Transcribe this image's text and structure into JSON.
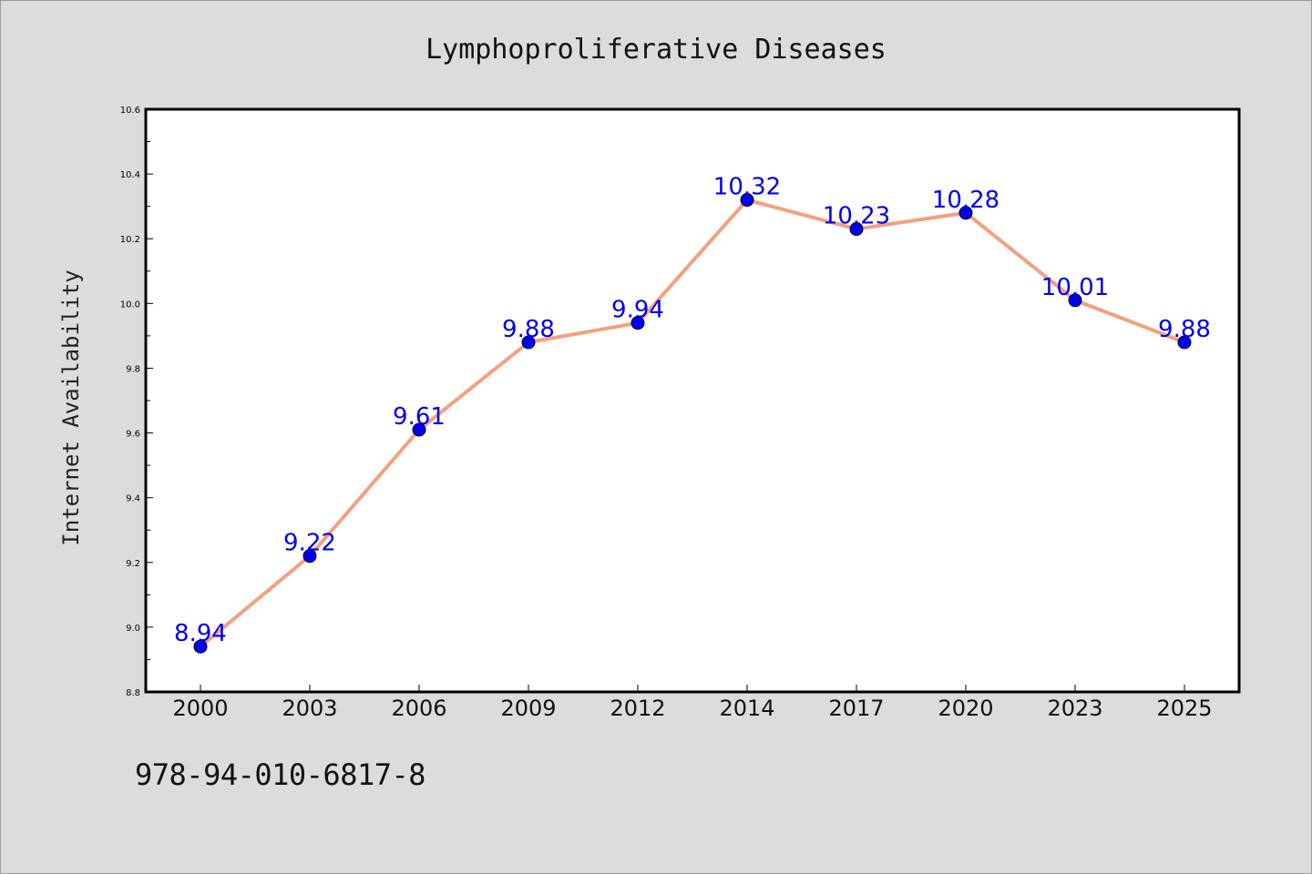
{
  "chart_data": {
    "type": "line",
    "title": "Lymphoproliferative Diseases",
    "xlabel": "",
    "ylabel": "Internet Availability",
    "categories": [
      "2000",
      "2003",
      "2006",
      "2009",
      "2012",
      "2014",
      "2017",
      "2020",
      "2023",
      "2025"
    ],
    "series": [
      {
        "values": [
          8.94,
          9.22,
          9.61,
          9.88,
          9.94,
          10.32,
          10.23,
          10.28,
          10.01,
          9.88
        ],
        "labels": [
          "8.94",
          "9.22",
          "9.61",
          "9.88",
          "9.94",
          "10.32",
          "10.23",
          "10.28",
          "10.01",
          "9.88"
        ],
        "line_color": "#f4a07e",
        "marker_color": "#0000ee"
      }
    ],
    "ylim": [
      8.8,
      10.6
    ],
    "yticks": [
      "8.8",
      "9.0",
      "9.2",
      "9.4",
      "9.6",
      "9.8",
      "10.0",
      "10.2",
      "10.4",
      "10.6"
    ],
    "grid": false,
    "legend": "none"
  },
  "footer": {
    "code": "978-94-010-6817-8"
  }
}
